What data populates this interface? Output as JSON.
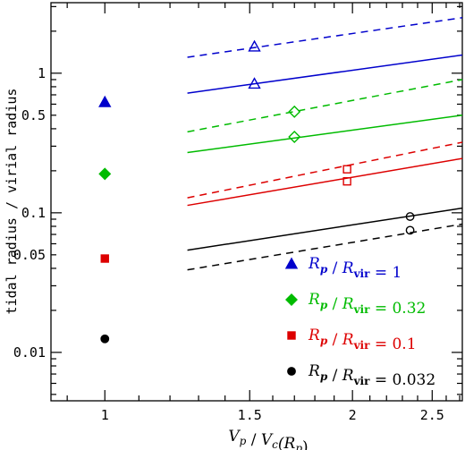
{
  "chart_data": {
    "type": "scatter",
    "title": "",
    "xlabel": "V_p / V_c(R_p)",
    "ylabel": "tidal radius / virial radius",
    "xscale": "log",
    "yscale": "log",
    "xlim": [
      0.86,
      2.72
    ],
    "ylim": [
      0.0045,
      3.2
    ],
    "x_ticks": [
      {
        "value": 1,
        "label": "1"
      },
      {
        "value": 1.5,
        "label": "1.5"
      },
      {
        "value": 2,
        "label": "2"
      },
      {
        "value": 2.5,
        "label": "2.5"
      }
    ],
    "y_ticks": [
      {
        "value": 0.01,
        "label": "0.01"
      },
      {
        "value": 0.05,
        "label": "0.05"
      },
      {
        "value": 0.1,
        "label": "0.1"
      },
      {
        "value": 0.5,
        "label": "0.5"
      },
      {
        "value": 1,
        "label": "1"
      }
    ],
    "grid": false,
    "legend_position": "bottom-right",
    "series": [
      {
        "name": "R_p / R_vir = 1",
        "legend_main": "R",
        "legend_sub": "p",
        "legend_slash": " / ",
        "legend_main2": "R",
        "legend_sub2": "vir",
        "legend_value": " = 1",
        "color": "#0000cc",
        "marker": "triangle",
        "filled_point": {
          "x": 1.0,
          "y": 0.62
        },
        "solid_line": {
          "x": [
            1.26,
            2.72
          ],
          "y": [
            0.72,
            1.35
          ]
        },
        "dashed_line": {
          "x": [
            1.26,
            2.72
          ],
          "y": [
            1.3,
            2.5
          ]
        },
        "open_points_solid": [
          {
            "x": 1.52,
            "y": 0.84
          }
        ],
        "open_points_dashed": [
          {
            "x": 1.52,
            "y": 1.55
          }
        ]
      },
      {
        "name": "R_p / R_vir = 0.32",
        "legend_main": "R",
        "legend_sub": "p",
        "legend_slash": " / ",
        "legend_main2": "R",
        "legend_sub2": "vir",
        "legend_value": " = 0.32",
        "color": "#00bb00",
        "marker": "diamond",
        "filled_point": {
          "x": 1.0,
          "y": 0.19
        },
        "solid_line": {
          "x": [
            1.26,
            2.72
          ],
          "y": [
            0.27,
            0.5
          ]
        },
        "dashed_line": {
          "x": [
            1.26,
            2.72
          ],
          "y": [
            0.38,
            0.9
          ]
        },
        "open_points_solid": [
          {
            "x": 1.7,
            "y": 0.35
          }
        ],
        "open_points_dashed": [
          {
            "x": 1.7,
            "y": 0.53
          }
        ]
      },
      {
        "name": "R_p / R_vir = 0.1",
        "legend_main": "R",
        "legend_sub": "p",
        "legend_slash": " / ",
        "legend_main2": "R",
        "legend_sub2": "vir",
        "legend_value": " = 0.1",
        "color": "#dd0000",
        "marker": "square",
        "filled_point": {
          "x": 1.0,
          "y": 0.047
        },
        "solid_line": {
          "x": [
            1.26,
            2.72
          ],
          "y": [
            0.113,
            0.245
          ]
        },
        "dashed_line": {
          "x": [
            1.26,
            2.72
          ],
          "y": [
            0.128,
            0.32
          ]
        },
        "open_points_solid": [
          {
            "x": 1.97,
            "y": 0.168
          }
        ],
        "open_points_dashed": [
          {
            "x": 1.97,
            "y": 0.205
          }
        ]
      },
      {
        "name": "R_p / R_vir = 0.032",
        "legend_main": "R",
        "legend_sub": "p",
        "legend_slash": " / ",
        "legend_main2": "R",
        "legend_sub2": "vir",
        "legend_value": " = 0.032",
        "color": "#000000",
        "marker": "circle",
        "filled_point": {
          "x": 1.0,
          "y": 0.0125
        },
        "solid_line": {
          "x": [
            1.26,
            2.72
          ],
          "y": [
            0.054,
            0.108
          ]
        },
        "dashed_line": {
          "x": [
            1.26,
            2.72
          ],
          "y": [
            0.039,
            0.083
          ]
        },
        "open_points_solid": [
          {
            "x": 2.35,
            "y": 0.094
          }
        ],
        "open_points_dashed": [
          {
            "x": 2.35,
            "y": 0.075
          }
        ]
      }
    ]
  }
}
